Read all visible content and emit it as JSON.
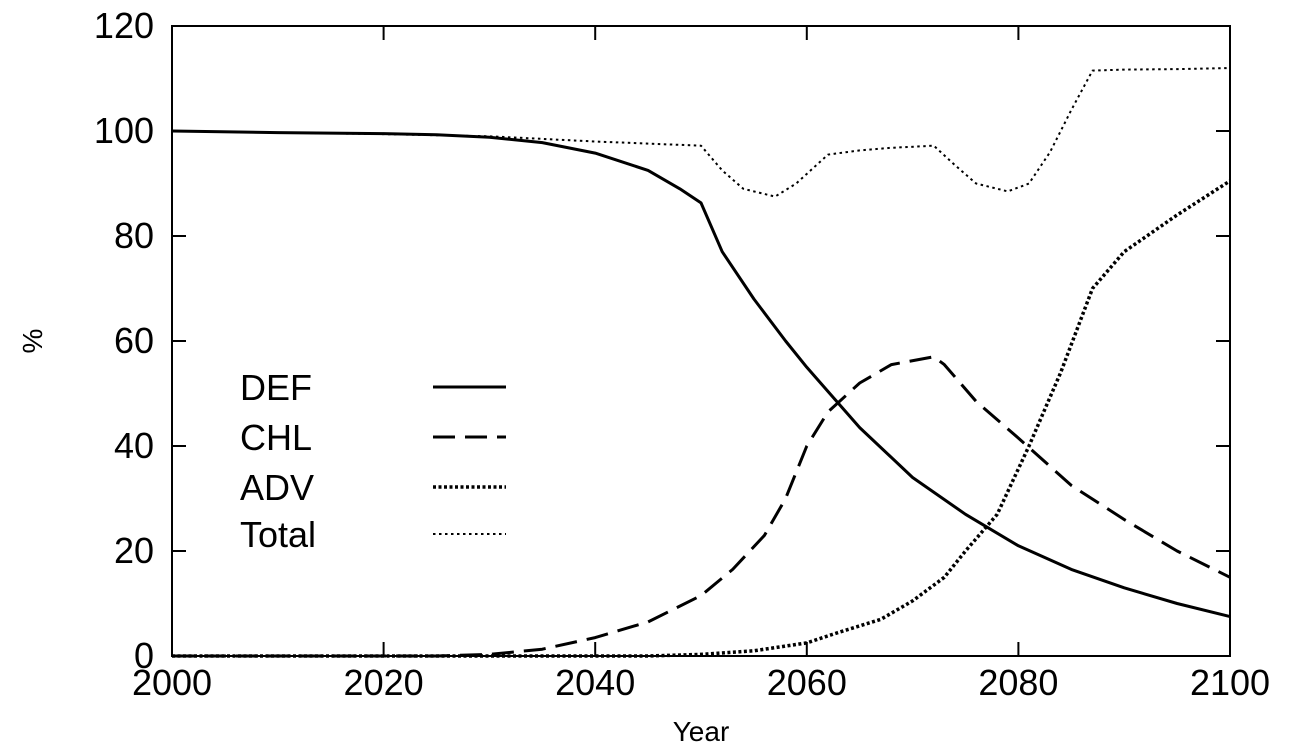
{
  "chart_data": {
    "type": "line",
    "title": "",
    "xlabel": "Year",
    "ylabel": "%",
    "xlim": [
      2000,
      2100
    ],
    "ylim": [
      0,
      120
    ],
    "x_ticks": [
      2000,
      2020,
      2040,
      2060,
      2080,
      2100
    ],
    "y_ticks": [
      0,
      20,
      40,
      60,
      80,
      100,
      120
    ],
    "grid": false,
    "legend_position": "left-middle",
    "series": [
      {
        "name": "DEF",
        "style": "solid",
        "x": [
          2000,
          2010,
          2020,
          2025,
          2030,
          2035,
          2040,
          2045,
          2048,
          2050,
          2052,
          2055,
          2058,
          2060,
          2065,
          2070,
          2075,
          2080,
          2085,
          2090,
          2095,
          2100
        ],
        "y": [
          100,
          99.7,
          99.5,
          99.3,
          98.8,
          97.8,
          95.8,
          92.5,
          89,
          86.3,
          77,
          68,
          60,
          55,
          43.5,
          34,
          27,
          21,
          16.5,
          13,
          10,
          7.5
        ]
      },
      {
        "name": "CHL",
        "style": "dashed",
        "x": [
          2000,
          2025,
          2030,
          2035,
          2040,
          2045,
          2050,
          2053,
          2056,
          2058,
          2060,
          2062,
          2065,
          2068,
          2072,
          2073,
          2076,
          2080,
          2085,
          2090,
          2095,
          2100
        ],
        "y": [
          0,
          0,
          0.3,
          1.3,
          3.5,
          6.5,
          11.5,
          16.5,
          23,
          30,
          40,
          46.5,
          52,
          55.5,
          57,
          55.5,
          48.5,
          41.5,
          32.5,
          26,
          20,
          15
        ]
      },
      {
        "name": "ADV",
        "style": "dotted-bold",
        "x": [
          2000,
          2045,
          2050,
          2055,
          2060,
          2063,
          2067,
          2070,
          2073,
          2075,
          2078,
          2081,
          2084,
          2087,
          2090,
          2095,
          2100
        ],
        "y": [
          0,
          0,
          0.3,
          1,
          2.5,
          4.5,
          7,
          10.5,
          15,
          20,
          27,
          40,
          54,
          70,
          77,
          84,
          90.5
        ]
      },
      {
        "name": "Total",
        "style": "dotted-thin",
        "x": [
          2000,
          2010,
          2020,
          2030,
          2040,
          2045,
          2050,
          2052,
          2054,
          2057,
          2059,
          2062,
          2065,
          2068,
          2072,
          2074,
          2076,
          2079,
          2081,
          2083,
          2085,
          2087,
          2090,
          2095,
          2100
        ],
        "y": [
          100,
          99.7,
          99.4,
          99,
          98,
          97.6,
          97.2,
          92.5,
          89,
          87.5,
          90,
          95.5,
          96.3,
          96.8,
          97.2,
          93.5,
          90,
          88.5,
          90,
          96,
          104,
          111.5,
          111.7,
          111.8,
          112
        ]
      }
    ]
  }
}
